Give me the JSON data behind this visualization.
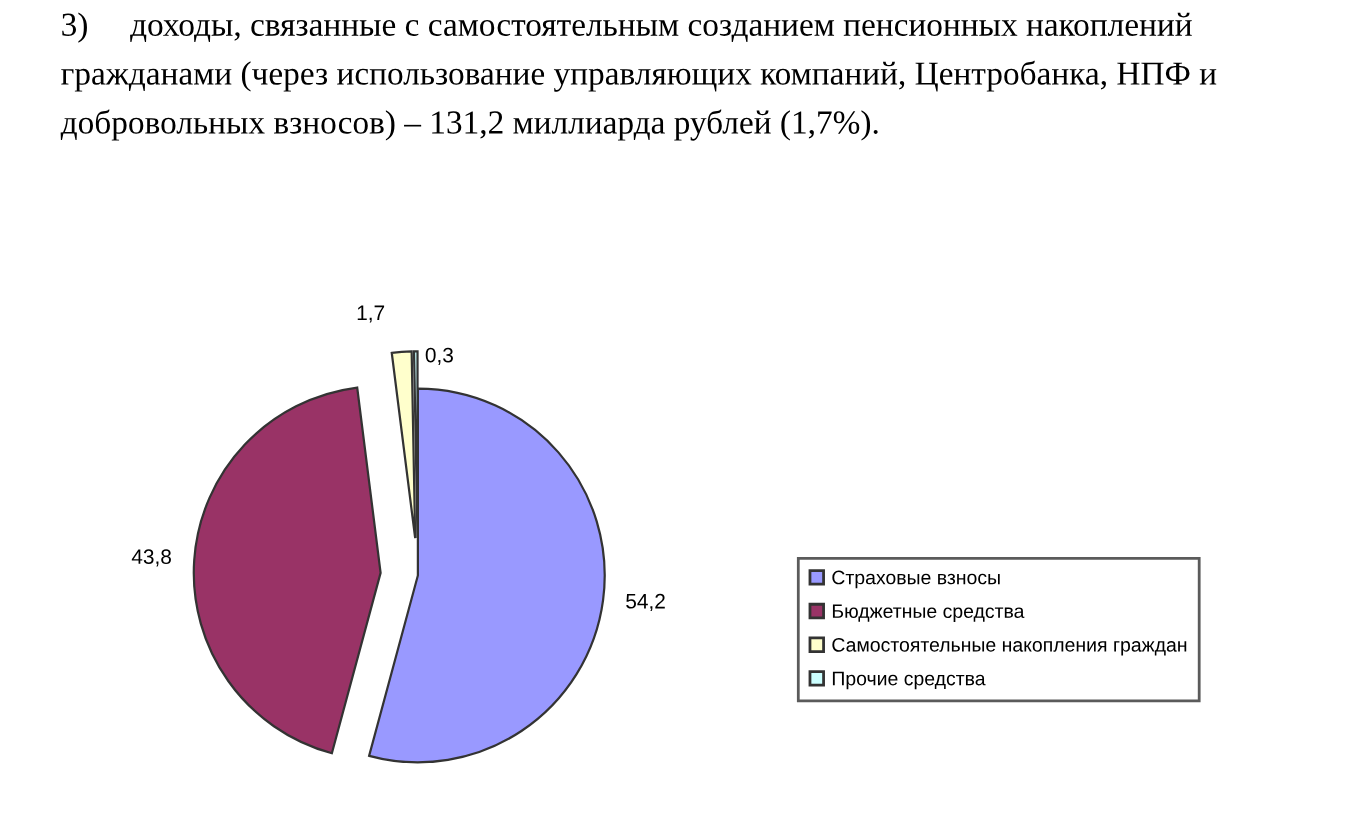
{
  "chart_data": {
    "type": "pie",
    "annotations": [
      "3)     доходы, связанные с самостоятельным созданием пенсионных накоплений гражданами (через использование управляющих компаний, Центробанка, НПФ и добровольных взносов) – 131,2 миллиарда рублей (1,7%)."
    ],
    "categories": [
      "Страховые взносы",
      "Бюджетные средства",
      "Самостоятельные накопления граждан",
      "Прочие средства"
    ],
    "values": [
      54.2,
      43.8,
      1.7,
      0.3
    ],
    "colors": [
      "#9999ff",
      "#993366",
      "#ffffcc",
      "#ccffff"
    ],
    "value_labels": [
      "54,2",
      "43,8",
      "1,7",
      "0,3"
    ],
    "legend": "right"
  }
}
